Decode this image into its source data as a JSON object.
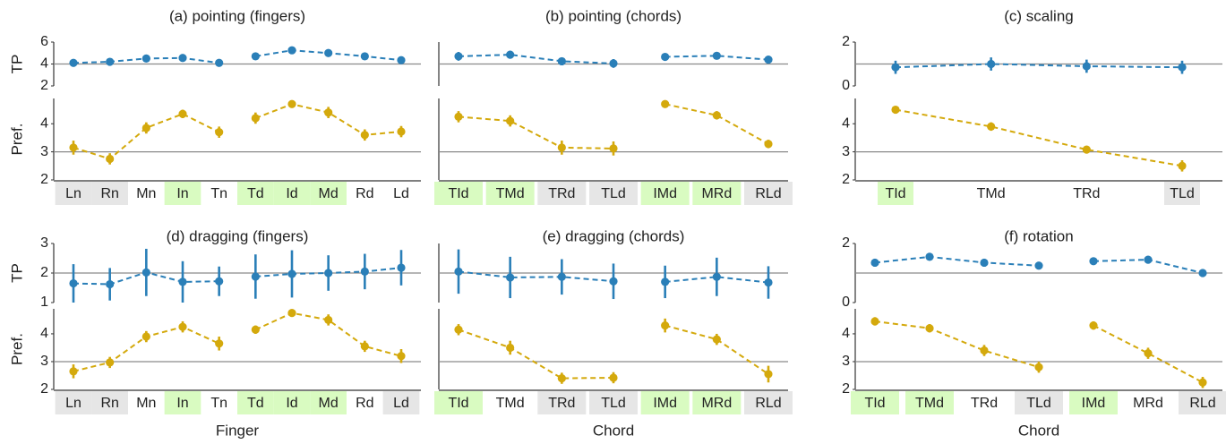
{
  "figure": {
    "colors": {
      "tp": "#2a7fb8",
      "pref": "#d4a90c",
      "refline": "#8a8a8a",
      "good_bg": "#d9fbc1",
      "bad_bg": "#e6e6e6"
    },
    "xlabels": [
      "Finger",
      "Chord",
      "Chord"
    ]
  },
  "chart_data": [
    {
      "type": "line",
      "title": "(a) pointing (fingers)",
      "categories": [
        "Ln",
        "Rn",
        "Mn",
        "In",
        "Tn",
        "Td",
        "Id",
        "Md",
        "Rd",
        "Ld"
      ],
      "category_highlight": [
        "bad",
        "bad",
        "none",
        "good",
        "none",
        "good",
        "good",
        "good",
        "none",
        "none"
      ],
      "groups": [
        [
          0,
          4
        ],
        [
          5,
          9
        ]
      ],
      "xlabel": "",
      "tp": {
        "ylabel": "TP",
        "ylim": [
          2,
          6
        ],
        "ticks": [
          "2",
          "4",
          "6"
        ],
        "ref": 4,
        "values": [
          4.1,
          4.2,
          4.5,
          4.55,
          4.1,
          4.7,
          5.25,
          5.0,
          4.7,
          4.35
        ],
        "err": [
          0.2,
          0.2,
          0.25,
          0.25,
          0.3,
          0.25,
          0.2,
          0.2,
          0.2,
          0.25
        ]
      },
      "pref": {
        "ylabel": "Pref.",
        "ylim": [
          2,
          4.9
        ],
        "ticks": [
          "2",
          "3",
          "4"
        ],
        "ref": 3,
        "values": [
          3.15,
          2.75,
          3.85,
          4.35,
          3.7,
          4.2,
          4.7,
          4.4,
          3.6,
          3.72
        ],
        "err": [
          0.25,
          0.2,
          0.2,
          0.15,
          0.2,
          0.2,
          0.1,
          0.2,
          0.2,
          0.2
        ]
      }
    },
    {
      "type": "line",
      "title": "(b) pointing (chords)",
      "categories": [
        "TId",
        "TMd",
        "TRd",
        "TLd",
        "IMd",
        "MRd",
        "RLd"
      ],
      "category_highlight": [
        "good",
        "good",
        "bad",
        "bad",
        "good",
        "good",
        "bad"
      ],
      "groups": [
        [
          0,
          3
        ],
        [
          4,
          6
        ]
      ],
      "xlabel": "",
      "tp": {
        "ylabel": "",
        "ylim": [
          2,
          6
        ],
        "ticks": [],
        "ref": 4,
        "values": [
          4.7,
          4.85,
          4.25,
          4.05,
          4.65,
          4.75,
          4.4
        ],
        "err": [
          0.4,
          0.35,
          0.3,
          0.4,
          0.3,
          0.3,
          0.3
        ]
      },
      "pref": {
        "ylabel": "",
        "ylim": [
          2,
          4.9
        ],
        "ticks": [],
        "ref": 3,
        "values": [
          4.25,
          4.1,
          3.15,
          3.12,
          4.7,
          4.3,
          3.28
        ],
        "err": [
          0.2,
          0.2,
          0.25,
          0.25,
          0.1,
          0.15,
          0.15
        ]
      }
    },
    {
      "type": "line",
      "title": "(c) scaling",
      "categories": [
        "TId",
        "TMd",
        "TRd",
        "TLd"
      ],
      "category_highlight": [
        "good",
        "none",
        "none",
        "bad"
      ],
      "groups": [
        [
          0,
          3
        ]
      ],
      "xlabel": "",
      "tp": {
        "ylabel": "",
        "ylim": [
          0,
          2
        ],
        "ticks": [
          "0",
          "2"
        ],
        "ref": 1,
        "values": [
          0.85,
          1.0,
          0.9,
          0.85
        ],
        "err": [
          0.3,
          0.3,
          0.3,
          0.3
        ]
      },
      "pref": {
        "ylabel": "",
        "ylim": [
          2,
          4.9
        ],
        "ticks": [
          "2",
          "3",
          "4"
        ],
        "ref": 3,
        "values": [
          4.5,
          3.9,
          3.08,
          2.5
        ],
        "err": [
          0.12,
          0.15,
          0.12,
          0.2
        ]
      }
    },
    {
      "type": "line",
      "title": "(d) dragging (fingers)",
      "categories": [
        "Ln",
        "Rn",
        "Mn",
        "In",
        "Tn",
        "Td",
        "Id",
        "Md",
        "Rd",
        "Ld"
      ],
      "category_highlight": [
        "bad",
        "bad",
        "none",
        "good",
        "none",
        "good",
        "good",
        "good",
        "none",
        "bad"
      ],
      "groups": [
        [
          0,
          4
        ],
        [
          5,
          9
        ]
      ],
      "xlabel": "Finger",
      "tp": {
        "ylabel": "TP",
        "ylim": [
          1,
          3
        ],
        "ticks": [
          "1",
          "2",
          "3"
        ],
        "ref": 2,
        "values": [
          1.65,
          1.62,
          2.02,
          1.7,
          1.72,
          1.88,
          1.97,
          2.0,
          2.05,
          2.18
        ],
        "err": [
          0.65,
          0.55,
          0.8,
          0.7,
          0.5,
          0.75,
          0.8,
          0.6,
          0.6,
          0.6
        ]
      },
      "pref": {
        "ylabel": "Pref.",
        "ylim": [
          2,
          4.9
        ],
        "ticks": [
          "2",
          "3",
          "4"
        ],
        "ref": 3,
        "values": [
          2.65,
          2.97,
          3.9,
          4.25,
          3.65,
          4.15,
          4.75,
          4.5,
          3.55,
          3.2
        ],
        "err": [
          0.25,
          0.2,
          0.2,
          0.2,
          0.25,
          0.15,
          0.1,
          0.2,
          0.2,
          0.25
        ]
      }
    },
    {
      "type": "line",
      "title": "(e) dragging (chords)",
      "categories": [
        "TId",
        "TMd",
        "TRd",
        "TLd",
        "IMd",
        "MRd",
        "RLd"
      ],
      "category_highlight": [
        "good",
        "none",
        "bad",
        "bad",
        "good",
        "good",
        "bad"
      ],
      "groups": [
        [
          0,
          3
        ],
        [
          4,
          6
        ]
      ],
      "xlabel": "Chord",
      "tp": {
        "ylabel": "",
        "ylim": [
          1,
          3
        ],
        "ticks": [],
        "ref": 2,
        "values": [
          2.05,
          1.85,
          1.87,
          1.72,
          1.7,
          1.87,
          1.68
        ],
        "err": [
          0.75,
          0.7,
          0.6,
          0.6,
          0.55,
          0.65,
          0.55
        ]
      },
      "pref": {
        "ylabel": "",
        "ylim": [
          2,
          4.9
        ],
        "ticks": [],
        "ref": 3,
        "values": [
          4.15,
          3.5,
          2.4,
          2.42,
          4.3,
          3.8,
          2.55
        ],
        "err": [
          0.2,
          0.25,
          0.2,
          0.2,
          0.25,
          0.2,
          0.3
        ]
      }
    },
    {
      "type": "line",
      "title": "(f) rotation",
      "categories": [
        "TId",
        "TMd",
        "TRd",
        "TLd",
        "IMd",
        "MRd",
        "RLd"
      ],
      "category_highlight": [
        "good",
        "good",
        "none",
        "bad",
        "good",
        "none",
        "bad"
      ],
      "groups": [
        [
          0,
          3
        ],
        [
          4,
          6
        ]
      ],
      "xlabel": "Chord",
      "tp": {
        "ylabel": "",
        "ylim": [
          0,
          2
        ],
        "ticks": [
          "0",
          "2"
        ],
        "ref": 1,
        "values": [
          1.35,
          1.55,
          1.35,
          1.25,
          1.4,
          1.45,
          1.0
        ],
        "err": [
          0.12,
          0.1,
          0.12,
          0.1,
          0.1,
          0.1,
          0.1
        ]
      },
      "pref": {
        "ylabel": "",
        "ylim": [
          2,
          4.9
        ],
        "ticks": [
          "2",
          "3",
          "4"
        ],
        "ref": 3,
        "values": [
          4.45,
          4.2,
          3.4,
          2.8,
          4.3,
          3.3,
          2.25
        ],
        "err": [
          0.15,
          0.15,
          0.2,
          0.2,
          0.15,
          0.2,
          0.2
        ]
      }
    }
  ]
}
